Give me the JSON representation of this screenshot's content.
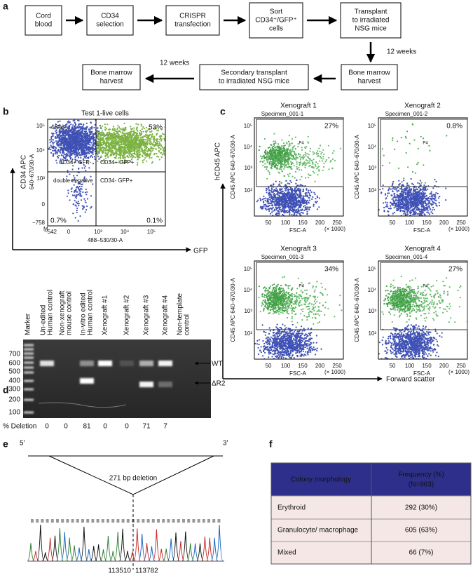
{
  "panel_a": {
    "label": "a",
    "nodes": [
      {
        "lines": [
          "Cord",
          "blood"
        ]
      },
      {
        "lines": [
          "CD34",
          "selection"
        ]
      },
      {
        "lines": [
          "CRISPR",
          "transfection"
        ]
      },
      {
        "lines": [
          "Sort",
          "CD34⁺/GFP⁺",
          "cells"
        ]
      },
      {
        "lines": [
          "Transplant",
          "to irradiated",
          "NSG mice"
        ]
      },
      {
        "lines": [
          "Bone marrow",
          "harvest"
        ]
      },
      {
        "lines": [
          "Secondary transplant",
          "to irradiated NSG mice"
        ]
      },
      {
        "lines": [
          "Bone marrow",
          "harvest"
        ]
      }
    ],
    "durations": [
      "12 weeks",
      "12 weeks"
    ]
  },
  "panel_b": {
    "label": "b",
    "title": "Test 1-live cells",
    "y_label": [
      "CD34 APC",
      "640–670/30-A"
    ],
    "x_label": "488–530/30-A",
    "axis_arrow_label": "GFP",
    "quadrant_percents": [
      "46%",
      "53%",
      "0.7%",
      "0.1%"
    ],
    "quadrant_names": [
      "CD34+ GFP-",
      "CD34+ GFP+",
      "double negative",
      "CD34- GFP+"
    ],
    "y_ticks": [
      "10⁵",
      "10⁴",
      "10³",
      "0",
      "−758"
    ],
    "x_ticks": [
      "−542",
      "0",
      "10³",
      "10⁴",
      "10⁵"
    ],
    "corner_mark": "M"
  },
  "panel_c": {
    "label": "c",
    "y_axis_arrow_label": "hCD45 APC",
    "x_axis_arrow_label": "Forward scatter",
    "y_label": "CD45 APC 640–670/30-A",
    "x_label": "FSC-A",
    "x_unit": "(× 1000)",
    "x_ticks": [
      "50",
      "100",
      "150",
      "200",
      "250"
    ],
    "y_ticks": [
      "10⁵",
      "10⁴",
      "10³",
      "10²"
    ],
    "plots": [
      {
        "title": "Xenograft 1",
        "specimen": "Specimen_001-1",
        "percent": "27%",
        "gate": "P4"
      },
      {
        "title": "Xenograft 2",
        "specimen": "Specimen_001-2",
        "percent": "0.8%",
        "gate": "P4"
      },
      {
        "title": "Xenograft 3",
        "specimen": "Specimen_001-3",
        "percent": "34%",
        "gate": "P4"
      },
      {
        "title": "Xenograft 4",
        "specimen": "Specimen_001-4",
        "percent": "27%",
        "gate": "P4"
      }
    ]
  },
  "panel_d": {
    "label": "d",
    "lane_labels": [
      {
        "lines": [
          "Marker"
        ]
      },
      {
        "lines": [
          "Un-edited",
          "Human control"
        ]
      },
      {
        "lines": [
          "Non-xenograft",
          "mouse control"
        ]
      },
      {
        "lines": [
          "In-vitro edited",
          "Human control"
        ]
      },
      {
        "lines": [
          "Xenograft #1"
        ]
      },
      {
        "lines": [
          "Xenograft #2"
        ]
      },
      {
        "lines": [
          "Xenograft #3"
        ]
      },
      {
        "lines": [
          "Xenograft #4"
        ]
      },
      {
        "lines": [
          "Non-template",
          "control"
        ]
      }
    ],
    "sizes": [
      "700",
      "600",
      "500",
      "400",
      "300",
      "200",
      "100"
    ],
    "band_labels": [
      "WT",
      "ΔR2"
    ],
    "deletion_label": "% Deletion",
    "deletion": [
      "0",
      "0",
      "81",
      "0",
      "0",
      "71",
      "7"
    ]
  },
  "panel_e": {
    "label": "e",
    "ends": [
      "5'",
      "3'"
    ],
    "deletion": "271 bp deletion",
    "positions": [
      "113510",
      "113782"
    ]
  },
  "panel_f": {
    "label": "f",
    "header": [
      "Colony morphology",
      "Frequency (%)",
      "(N=963)"
    ],
    "rows": [
      [
        "Erythroid",
        "292 (30%)"
      ],
      [
        "Granulocyte/ macrophage",
        "605 (63%)"
      ],
      [
        "Mixed",
        "66 (7%)"
      ]
    ]
  }
}
